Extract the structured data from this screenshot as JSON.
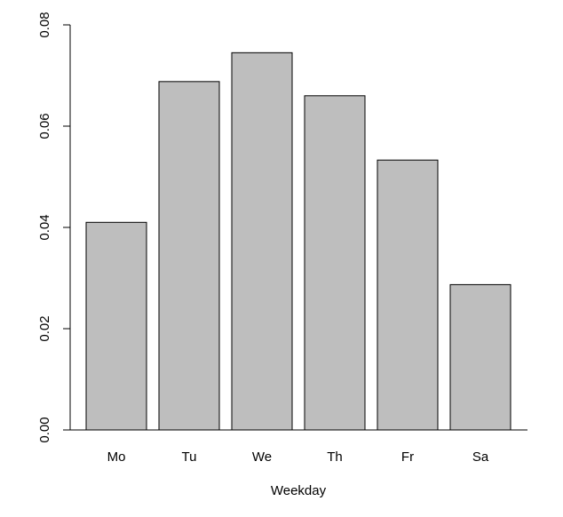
{
  "chart_data": {
    "type": "bar",
    "categories": [
      "Mo",
      "Tu",
      "We",
      "Th",
      "Fr",
      "Sa"
    ],
    "values": [
      0.041,
      0.0688,
      0.0745,
      0.066,
      0.0533,
      0.0287
    ],
    "title": "",
    "xlabel": "Weekday",
    "ylabel": "",
    "ylim": [
      0,
      0.08
    ],
    "yticks": [
      "0.00",
      "0.02",
      "0.04",
      "0.06",
      "0.08"
    ],
    "grid": false,
    "colors": {
      "bar_fill": "#bebebe",
      "bar_stroke": "#000000",
      "axis": "#000000"
    }
  }
}
